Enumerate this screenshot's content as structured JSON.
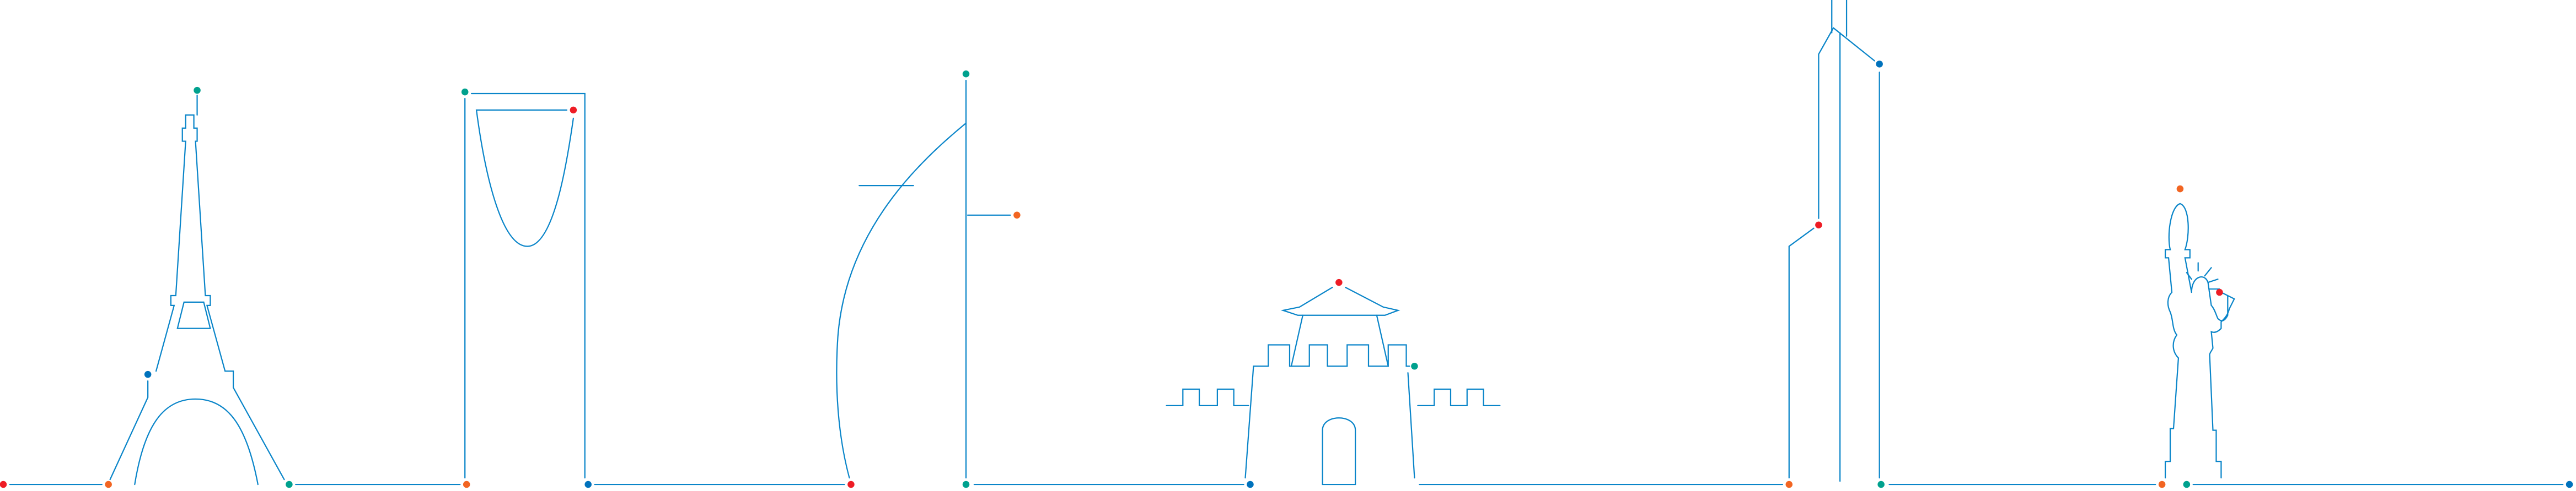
{
  "colors": {
    "line": "#0a85c9",
    "dot_red": "#ee1c25",
    "dot_orange": "#f26522",
    "dot_teal": "#00a18e",
    "dot_blue": "#0072bc",
    "background": "#ffffff"
  },
  "landmarks": [
    {
      "icon": "eiffel-tower-icon"
    },
    {
      "icon": "kingdom-centre-tower-icon"
    },
    {
      "icon": "sail-tower-icon"
    },
    {
      "icon": "asian-temple-gate-icon"
    },
    {
      "icon": "skyscraper-icon"
    },
    {
      "icon": "statue-of-liberty-icon"
    }
  ]
}
